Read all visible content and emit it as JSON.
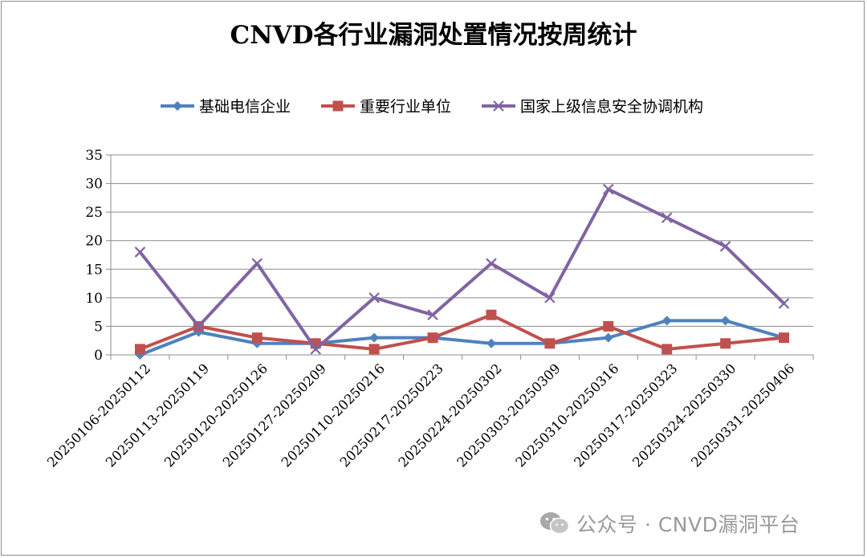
{
  "chart_data": {
    "type": "line",
    "title": "CNVD各行业漏洞处置情况按周统计",
    "categories": [
      "20250106-20250112",
      "20250113-20250119",
      "20250120-20250126",
      "20250127-20250209",
      "20250110-20250216",
      "20250217-20250223",
      "20250224-20250302",
      "20250303-20250309",
      "20250310-20250316",
      "20250317-20250323",
      "20250324-20250330",
      "20250331-20250406"
    ],
    "series": [
      {
        "name": "基础电信企业",
        "color": "#4f81bd",
        "marker": "diamond",
        "values": [
          0,
          4,
          2,
          2,
          3,
          3,
          2,
          2,
          3,
          6,
          6,
          3
        ]
      },
      {
        "name": "重要行业单位",
        "color": "#c0504d",
        "marker": "square",
        "values": [
          1,
          5,
          3,
          2,
          1,
          3,
          7,
          2,
          5,
          1,
          2,
          3
        ]
      },
      {
        "name": "国家上级信息安全协调机构",
        "color": "#8064a2",
        "marker": "x",
        "values": [
          18,
          5,
          16,
          1,
          10,
          7,
          16,
          10,
          29,
          24,
          19,
          9
        ]
      }
    ],
    "ylim": [
      0,
      35
    ],
    "yticks": [
      0,
      5,
      10,
      15,
      20,
      25,
      30,
      35
    ],
    "grid": true,
    "legend": "top"
  },
  "watermark": {
    "icon": "wechat-icon",
    "text": "公众号 · CNVD漏洞平台"
  }
}
